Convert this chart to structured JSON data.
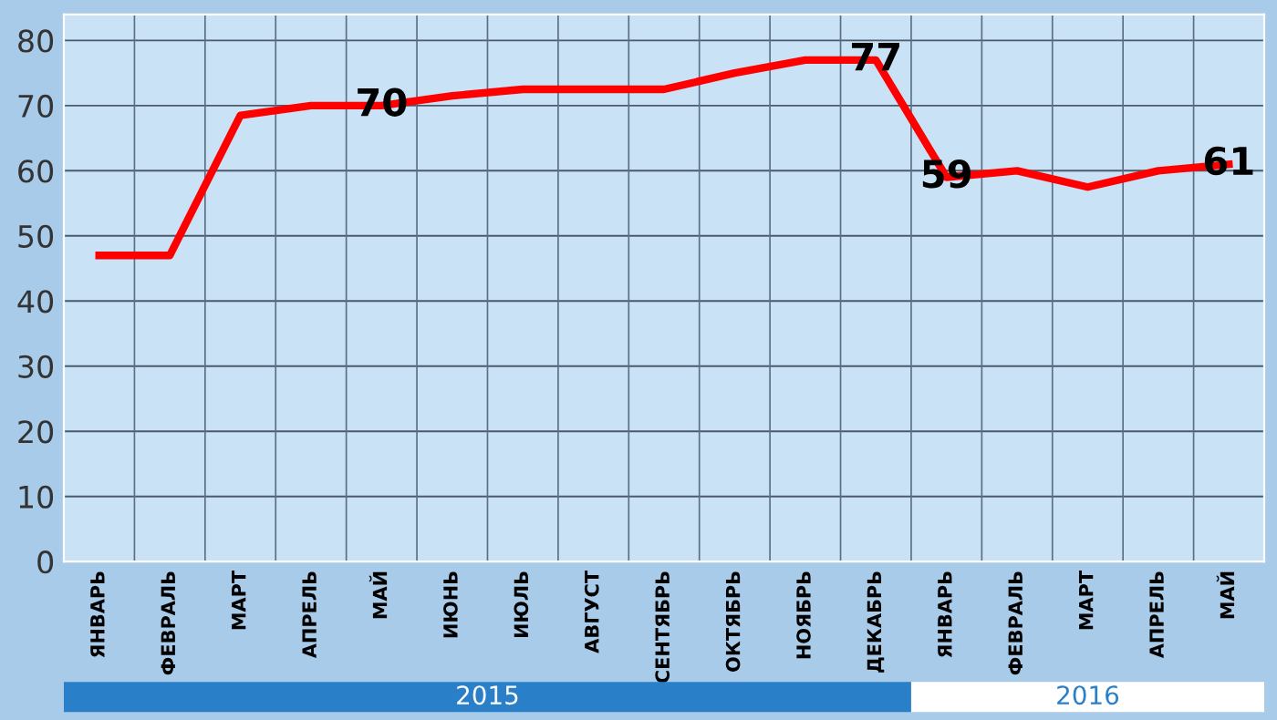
{
  "chart_data": {
    "type": "line",
    "categories": [
      "ЯНВАРЬ",
      "ФЕВРАЛЬ",
      "МАРТ",
      "АПРЕЛЬ",
      "МАЙ",
      "ИЮНЬ",
      "ИЮЛЬ",
      "АВГУСТ",
      "СЕНТЯБРЬ",
      "ОКТЯБРЬ",
      "НОЯБРЬ",
      "ДЕКАБРЬ",
      "ЯНВАРЬ",
      "ФЕВРАЛЬ",
      "МАРТ",
      "АПРЕЛЬ",
      "МАЙ"
    ],
    "series": [
      {
        "color": "#ff0000",
        "values": [
          47,
          47,
          68.5,
          70,
          70,
          71.5,
          72.5,
          72.5,
          72.5,
          75,
          77,
          77,
          59,
          60,
          57.5,
          60,
          61
        ],
        "value_labels": [
          null,
          null,
          null,
          null,
          "70",
          null,
          null,
          null,
          null,
          null,
          null,
          "77",
          "59",
          null,
          null,
          null,
          "61"
        ]
      }
    ],
    "ylim": [
      0,
      84
    ],
    "yticks": [
      0,
      10,
      20,
      30,
      40,
      50,
      60,
      70,
      80
    ],
    "annotations": [
      "2015",
      "2016"
    ],
    "grid": "y",
    "marker": "none",
    "line_style": "solid",
    "legend": false
  }
}
